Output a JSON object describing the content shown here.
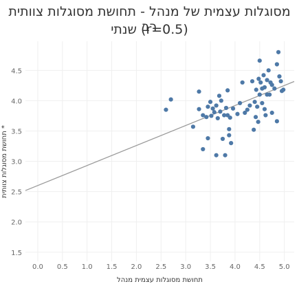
{
  "chart_data": {
    "type": "scatter",
    "title_lines": [
      "מסוגלות עצמית של מנהל - תחושת מסוגלות צוותית רב",
      "שנתי (r=0.5)"
    ],
    "xlabel": "תחושת מסוגלות עצמית מנהל",
    "ylabel": "תחושת מסוגלות צוותית *",
    "xlim": [
      -0.25,
      5.2
    ],
    "ylim": [
      1.35,
      4.98
    ],
    "x_ticks": [
      "0.0",
      "0.5",
      "1.0",
      "1.5",
      "2.0",
      "2.5",
      "3.0",
      "3.5",
      "4.0",
      "4.5",
      "5.0"
    ],
    "y_ticks": [
      "1.5",
      "2.0",
      "2.5",
      "3.0",
      "3.5",
      "4.0",
      "4.5"
    ],
    "grid": true,
    "trendline": {
      "intercept": 2.6,
      "slope": 0.33,
      "x_range": [
        -0.25,
        5.2
      ]
    },
    "points": [
      [
        2.6,
        3.85
      ],
      [
        2.7,
        4.02
      ],
      [
        3.15,
        3.57
      ],
      [
        3.27,
        4.15
      ],
      [
        3.27,
        3.86
      ],
      [
        3.35,
        3.2
      ],
      [
        3.35,
        3.76
      ],
      [
        3.42,
        3.73
      ],
      [
        3.45,
        3.38
      ],
      [
        3.45,
        3.9
      ],
      [
        3.5,
        3.98
      ],
      [
        3.52,
        3.75
      ],
      [
        3.55,
        3.87
      ],
      [
        3.58,
        3.81
      ],
      [
        3.62,
        3.1
      ],
      [
        3.62,
        3.92
      ],
      [
        3.65,
        3.71
      ],
      [
        3.68,
        4.08
      ],
      [
        3.7,
        3.82
      ],
      [
        3.72,
        4.0
      ],
      [
        3.75,
        3.37
      ],
      [
        3.78,
        3.76
      ],
      [
        3.8,
        3.1
      ],
      [
        3.82,
        3.88
      ],
      [
        3.85,
        4.17
      ],
      [
        3.85,
        3.76
      ],
      [
        3.88,
        3.53
      ],
      [
        3.88,
        3.43
      ],
      [
        3.9,
        3.72
      ],
      [
        3.92,
        3.3
      ],
      [
        3.96,
        3.87
      ],
      [
        4.05,
        3.78
      ],
      [
        4.1,
        3.96
      ],
      [
        4.15,
        4.3
      ],
      [
        4.2,
        3.8
      ],
      [
        4.25,
        3.85
      ],
      [
        4.3,
        3.92
      ],
      [
        4.35,
        4.32
      ],
      [
        4.38,
        3.52
      ],
      [
        4.4,
        3.98
      ],
      [
        4.42,
        3.73
      ],
      [
        4.43,
        4.18
      ],
      [
        4.45,
        3.9
      ],
      [
        4.47,
        3.65
      ],
      [
        4.48,
        4.36
      ],
      [
        4.5,
        4.1
      ],
      [
        4.5,
        4.66
      ],
      [
        4.52,
        4.3
      ],
      [
        4.55,
        4.2
      ],
      [
        4.55,
        3.96
      ],
      [
        4.58,
        4.42
      ],
      [
        4.6,
        3.86
      ],
      [
        4.6,
        4.22
      ],
      [
        4.62,
        3.76
      ],
      [
        4.65,
        4.34
      ],
      [
        4.65,
        4.1
      ],
      [
        4.68,
        4.5
      ],
      [
        4.7,
        4.1
      ],
      [
        4.72,
        4.3
      ],
      [
        4.75,
        3.8
      ],
      [
        4.75,
        4.26
      ],
      [
        4.8,
        4.2
      ],
      [
        4.85,
        4.6
      ],
      [
        4.85,
        3.66
      ],
      [
        4.88,
        4.8
      ],
      [
        4.9,
        4.4
      ],
      [
        4.93,
        4.32
      ],
      [
        4.95,
        4.16
      ],
      [
        4.98,
        4.18
      ]
    ]
  }
}
